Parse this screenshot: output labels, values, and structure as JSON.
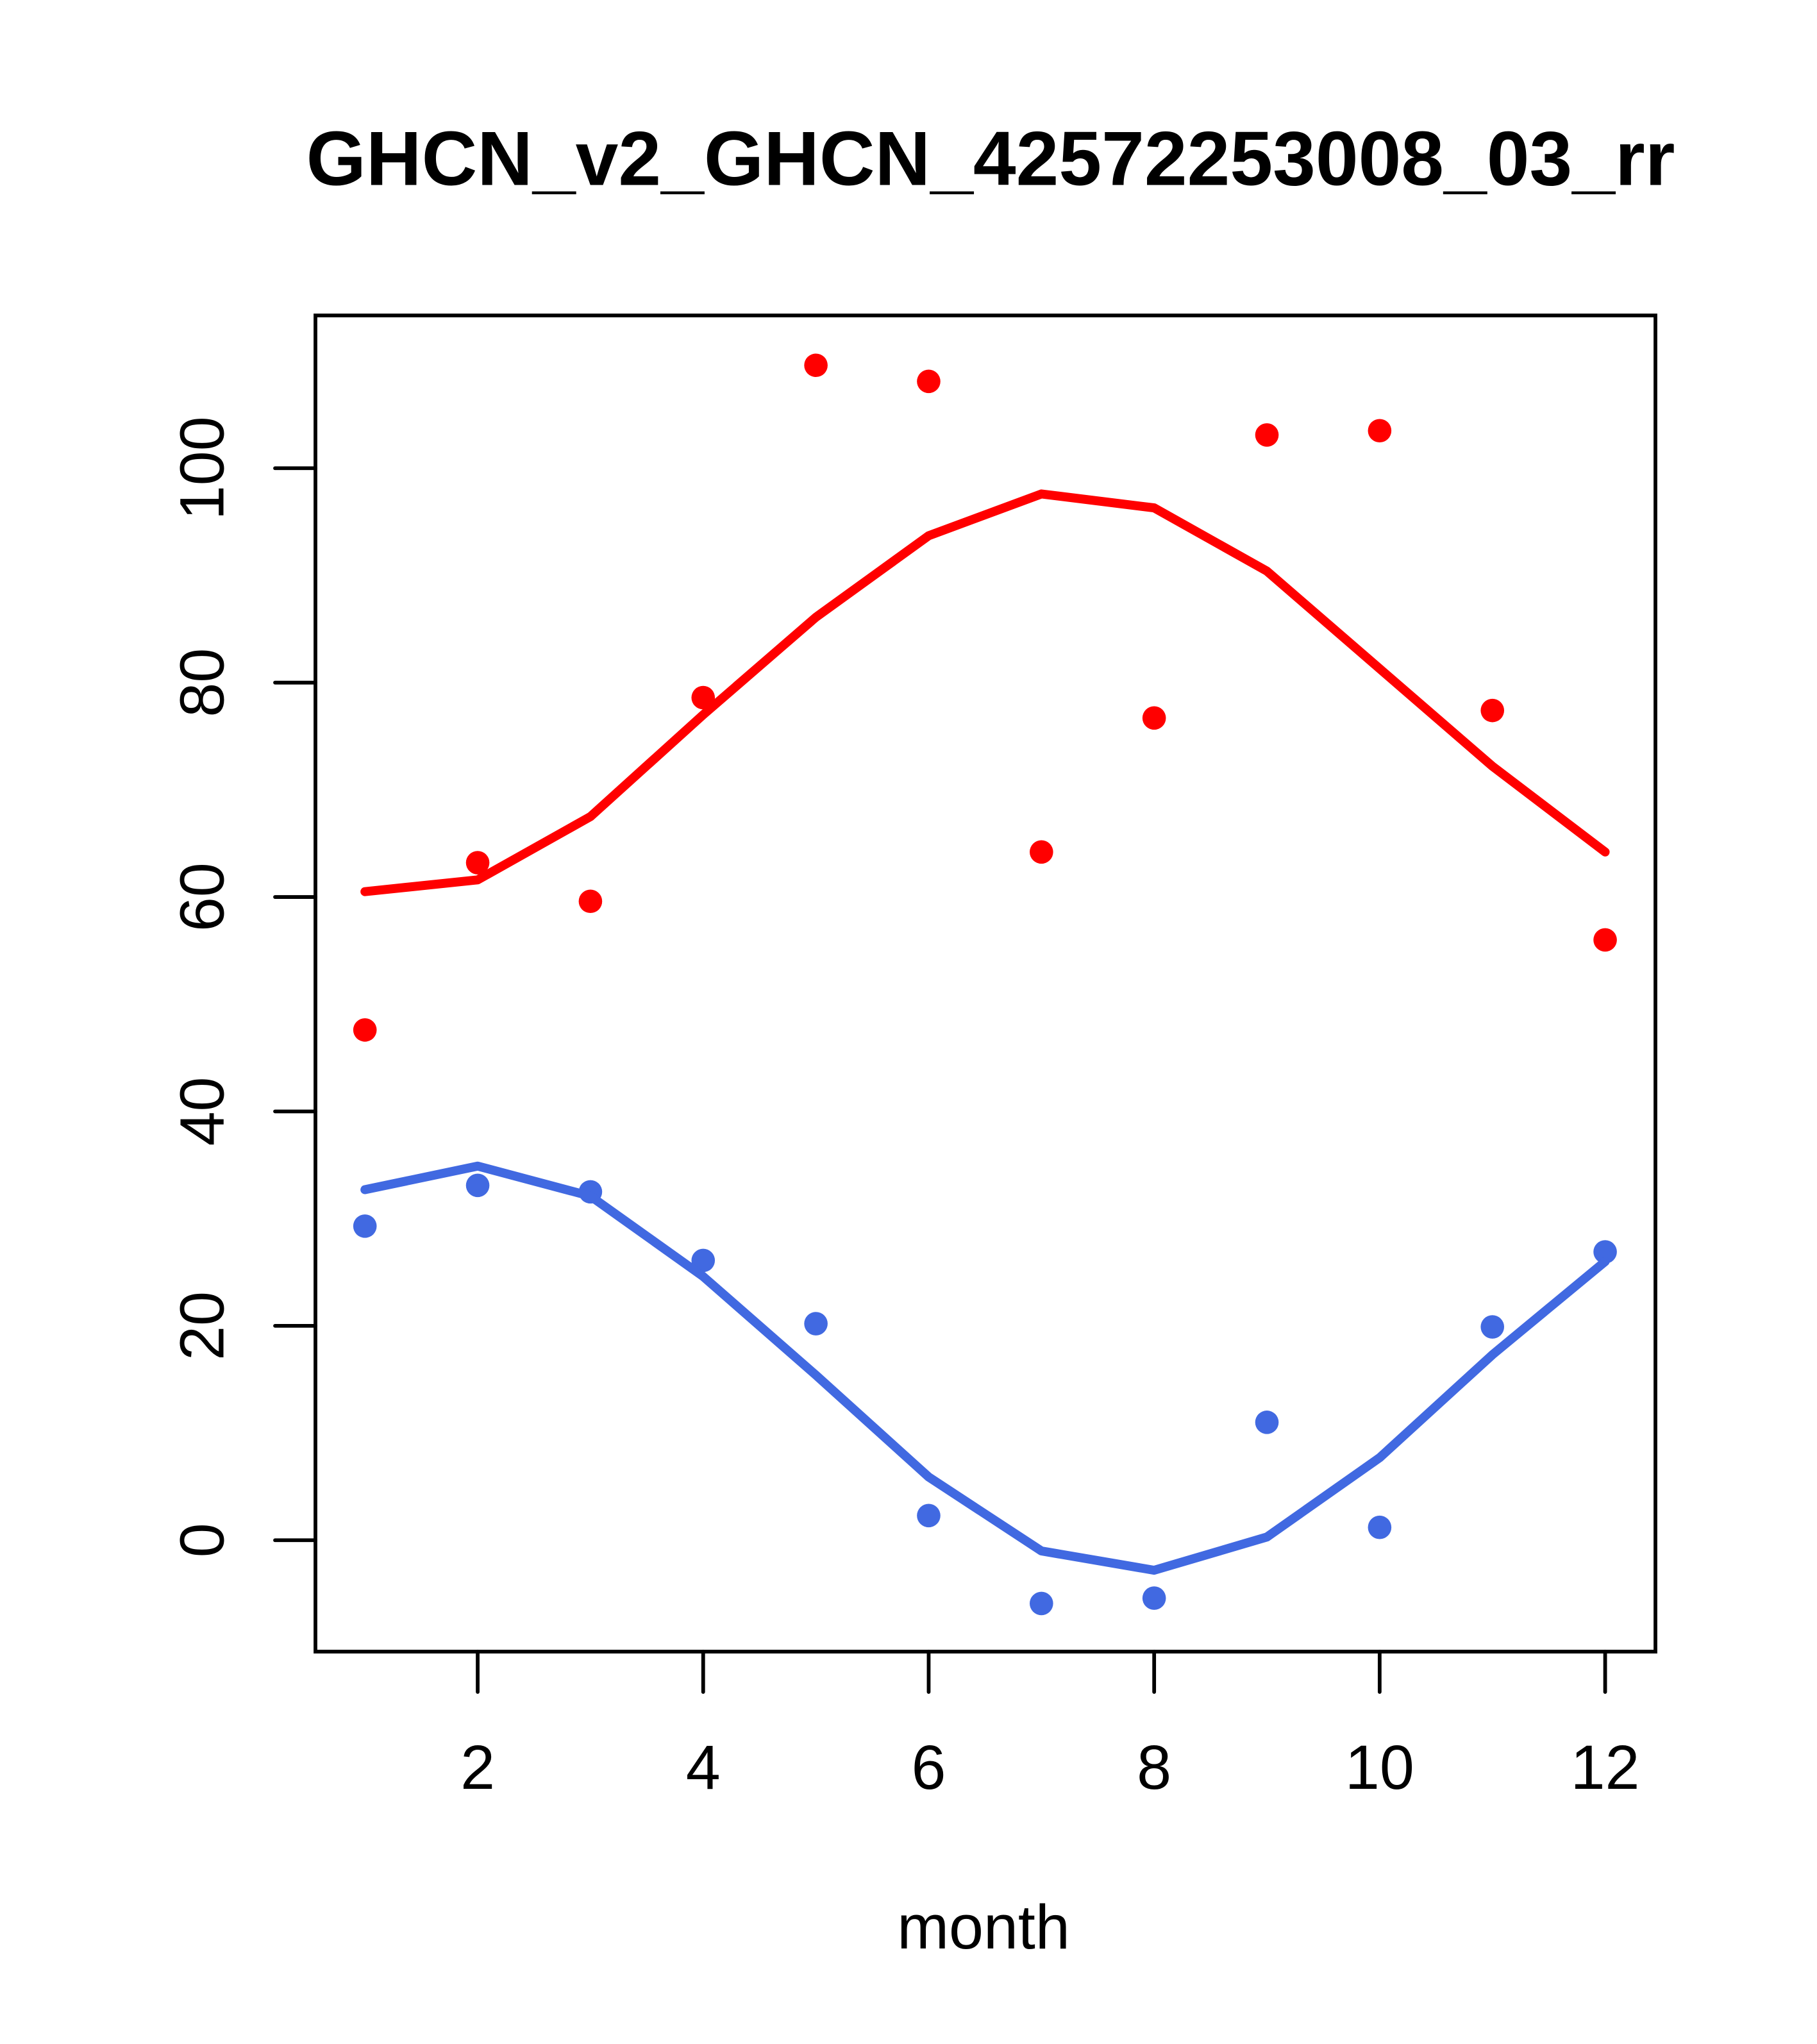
{
  "chart_data": {
    "type": "scatter",
    "title": "GHCN_v2_GHCN_42572253008_03_rr",
    "xlabel": "month",
    "ylabel": "",
    "x": [
      1,
      2,
      3,
      4,
      5,
      6,
      7,
      8,
      9,
      10,
      11,
      12
    ],
    "series": [
      {
        "name": "red-points",
        "kind": "points",
        "color": "#FF0000",
        "values": [
          47.6,
          63.2,
          59.6,
          78.6,
          109.6,
          108.1,
          64.2,
          76.7,
          103.1,
          103.5,
          77.4,
          56.0
        ]
      },
      {
        "name": "red-fit-line",
        "kind": "line",
        "color": "#FF0000",
        "values": [
          60.5,
          61.6,
          67.5,
          77.0,
          86.1,
          93.7,
          97.6,
          96.3,
          90.4,
          81.3,
          72.2,
          64.2
        ]
      },
      {
        "name": "blue-points",
        "kind": "points",
        "color": "#4169E1",
        "values": [
          29.3,
          33.1,
          32.5,
          26.1,
          20.2,
          2.3,
          -5.9,
          -5.4,
          11.0,
          1.2,
          19.9,
          26.9
        ]
      },
      {
        "name": "blue-fit-line",
        "kind": "line",
        "color": "#4169E1",
        "values": [
          32.7,
          34.9,
          32.1,
          24.6,
          15.4,
          5.9,
          -1.0,
          -2.8,
          0.3,
          7.7,
          17.3,
          26.0
        ]
      }
    ],
    "xticks": [
      2,
      4,
      6,
      8,
      10,
      12
    ],
    "yticks": [
      0,
      20,
      40,
      60,
      80,
      100
    ],
    "xlim": [
      1,
      12
    ],
    "ylim": [
      -5.9,
      109.6
    ],
    "grid": false,
    "legend": "none",
    "background_color": "#FFFFFF",
    "axis_color": "#000000"
  }
}
